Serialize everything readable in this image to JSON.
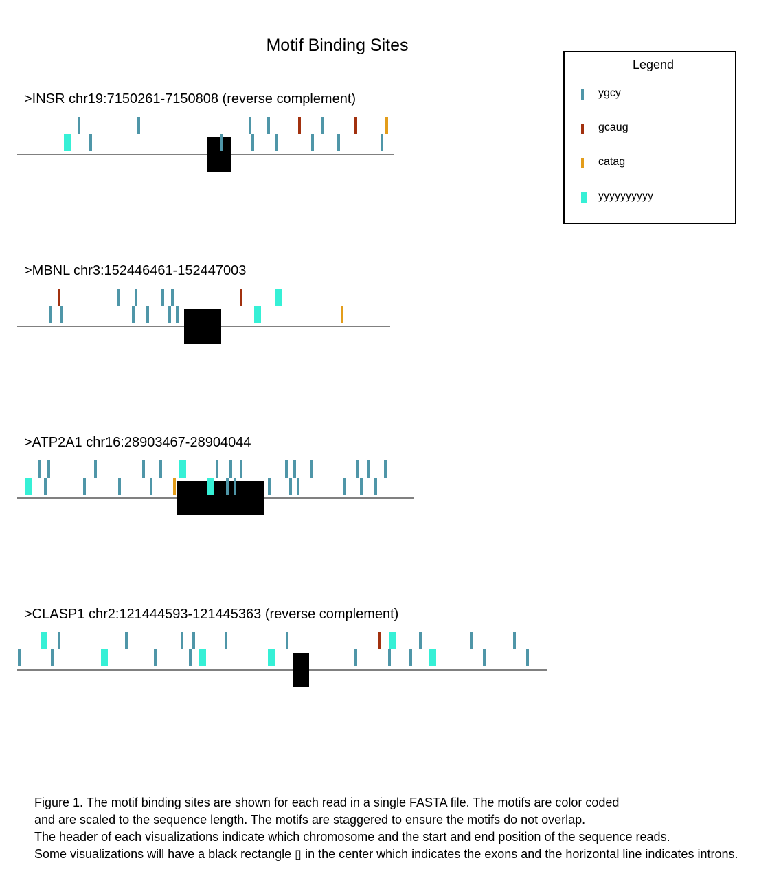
{
  "title": "Motif Binding Sites",
  "legend": {
    "title": "Legend",
    "items": [
      {
        "label": "ygcy",
        "color": "#4f96a8",
        "wide": false
      },
      {
        "label": "gcaug",
        "color": "#a2310f",
        "wide": false
      },
      {
        "label": "catag",
        "color": "#e39d1b",
        "wide": false
      },
      {
        "label": "yyyyyyyyyy",
        "color": "#36f0d6",
        "wide": true
      }
    ]
  },
  "colors": {
    "ygcy": "#4f96a8",
    "gcaug": "#a2310f",
    "catag": "#e39d1b",
    "yyyyyyyyyy": "#36f0d6",
    "exon": "#000000",
    "intron": "#808080"
  },
  "reads": [
    {
      "header": ">INSR chr19:7150261-7150808 (reverse complement)",
      "length": 548,
      "exon": [
        276,
        311
      ],
      "motifs": [
        {
          "m": "ygcy",
          "pos": 90,
          "row": 1
        },
        {
          "m": "ygcy",
          "pos": 177,
          "row": 1
        },
        {
          "m": "ygcy",
          "pos": 339,
          "row": 1
        },
        {
          "m": "ygcy",
          "pos": 366,
          "row": 1
        },
        {
          "m": "gcaug",
          "pos": 411,
          "row": 1
        },
        {
          "m": "ygcy",
          "pos": 444,
          "row": 1
        },
        {
          "m": "gcaug",
          "pos": 493,
          "row": 1
        },
        {
          "m": "catag",
          "pos": 538,
          "row": 1
        },
        {
          "m": "yyyyyyyyyy",
          "pos": 73,
          "row": 0
        },
        {
          "m": "ygcy",
          "pos": 107,
          "row": 0
        },
        {
          "m": "ygcy",
          "pos": 298,
          "row": 0
        },
        {
          "m": "ygcy",
          "pos": 343,
          "row": 0
        },
        {
          "m": "ygcy",
          "pos": 377,
          "row": 0
        },
        {
          "m": "ygcy",
          "pos": 430,
          "row": 0
        },
        {
          "m": "ygcy",
          "pos": 468,
          "row": 0
        },
        {
          "m": "ygcy",
          "pos": 531,
          "row": 0
        }
      ]
    },
    {
      "header": ">MBNL chr3:152446461-152447003",
      "length": 543,
      "exon": [
        243,
        297
      ],
      "motifs": [
        {
          "m": "gcaug",
          "pos": 61,
          "row": 1
        },
        {
          "m": "ygcy",
          "pos": 147,
          "row": 1
        },
        {
          "m": "ygcy",
          "pos": 173,
          "row": 1
        },
        {
          "m": "ygcy",
          "pos": 212,
          "row": 1
        },
        {
          "m": "ygcy",
          "pos": 226,
          "row": 1
        },
        {
          "m": "gcaug",
          "pos": 326,
          "row": 1
        },
        {
          "m": "yyyyyyyyyy",
          "pos": 381,
          "row": 1
        },
        {
          "m": "ygcy",
          "pos": 49,
          "row": 0
        },
        {
          "m": "ygcy",
          "pos": 64,
          "row": 0
        },
        {
          "m": "ygcy",
          "pos": 169,
          "row": 0
        },
        {
          "m": "ygcy",
          "pos": 190,
          "row": 0
        },
        {
          "m": "ygcy",
          "pos": 222,
          "row": 0
        },
        {
          "m": "ygcy",
          "pos": 233,
          "row": 0
        },
        {
          "m": "yyyyyyyyyy",
          "pos": 350,
          "row": 0
        },
        {
          "m": "catag",
          "pos": 473,
          "row": 0
        }
      ]
    },
    {
      "header": ">ATP2A1 chr16:28903467-28904044",
      "length": 578,
      "exon": [
        233,
        360
      ],
      "motifs": [
        {
          "m": "ygcy",
          "pos": 32,
          "row": 1
        },
        {
          "m": "ygcy",
          "pos": 46,
          "row": 1
        },
        {
          "m": "ygcy",
          "pos": 114,
          "row": 1
        },
        {
          "m": "ygcy",
          "pos": 184,
          "row": 1
        },
        {
          "m": "ygcy",
          "pos": 209,
          "row": 1
        },
        {
          "m": "yyyyyyyyyy",
          "pos": 241,
          "row": 1
        },
        {
          "m": "ygcy",
          "pos": 291,
          "row": 1
        },
        {
          "m": "ygcy",
          "pos": 311,
          "row": 1
        },
        {
          "m": "ygcy",
          "pos": 326,
          "row": 1
        },
        {
          "m": "ygcy",
          "pos": 392,
          "row": 1
        },
        {
          "m": "ygcy",
          "pos": 404,
          "row": 1
        },
        {
          "m": "ygcy",
          "pos": 429,
          "row": 1
        },
        {
          "m": "ygcy",
          "pos": 496,
          "row": 1
        },
        {
          "m": "ygcy",
          "pos": 511,
          "row": 1
        },
        {
          "m": "ygcy",
          "pos": 536,
          "row": 1
        },
        {
          "m": "yyyyyyyyyy",
          "pos": 17,
          "row": 0
        },
        {
          "m": "ygcy",
          "pos": 41,
          "row": 0
        },
        {
          "m": "ygcy",
          "pos": 98,
          "row": 0
        },
        {
          "m": "ygcy",
          "pos": 149,
          "row": 0
        },
        {
          "m": "ygcy",
          "pos": 195,
          "row": 0
        },
        {
          "m": "catag",
          "pos": 229,
          "row": 0
        },
        {
          "m": "yyyyyyyyyy",
          "pos": 281,
          "row": 0
        },
        {
          "m": "ygcy",
          "pos": 306,
          "row": 0
        },
        {
          "m": "ygcy",
          "pos": 317,
          "row": 0
        },
        {
          "m": "ygcy",
          "pos": 367,
          "row": 0
        },
        {
          "m": "ygcy",
          "pos": 398,
          "row": 0
        },
        {
          "m": "ygcy",
          "pos": 409,
          "row": 0
        },
        {
          "m": "ygcy",
          "pos": 476,
          "row": 0
        },
        {
          "m": "ygcy",
          "pos": 501,
          "row": 0
        },
        {
          "m": "ygcy",
          "pos": 522,
          "row": 0
        }
      ]
    },
    {
      "header": ">CLASP1 chr2:121444593-121445363 (reverse complement)",
      "length": 771,
      "exon": [
        401,
        425
      ],
      "motifs": [
        {
          "m": "yyyyyyyyyy",
          "pos": 39,
          "row": 1
        },
        {
          "m": "ygcy",
          "pos": 61,
          "row": 1
        },
        {
          "m": "ygcy",
          "pos": 159,
          "row": 1
        },
        {
          "m": "ygcy",
          "pos": 240,
          "row": 1
        },
        {
          "m": "ygcy",
          "pos": 257,
          "row": 1
        },
        {
          "m": "ygcy",
          "pos": 304,
          "row": 1
        },
        {
          "m": "ygcy",
          "pos": 393,
          "row": 1
        },
        {
          "m": "gcaug",
          "pos": 527,
          "row": 1
        },
        {
          "m": "yyyyyyyyyy",
          "pos": 546,
          "row": 1
        },
        {
          "m": "ygcy",
          "pos": 587,
          "row": 1
        },
        {
          "m": "ygcy",
          "pos": 661,
          "row": 1
        },
        {
          "m": "ygcy",
          "pos": 724,
          "row": 1
        },
        {
          "m": "ygcy",
          "pos": 3,
          "row": 0
        },
        {
          "m": "ygcy",
          "pos": 51,
          "row": 0
        },
        {
          "m": "yyyyyyyyyy",
          "pos": 127,
          "row": 0
        },
        {
          "m": "ygcy",
          "pos": 201,
          "row": 0
        },
        {
          "m": "ygcy",
          "pos": 252,
          "row": 0
        },
        {
          "m": "yyyyyyyyyy",
          "pos": 270,
          "row": 0
        },
        {
          "m": "yyyyyyyyyy",
          "pos": 370,
          "row": 0
        },
        {
          "m": "ygcy",
          "pos": 493,
          "row": 0
        },
        {
          "m": "ygcy",
          "pos": 542,
          "row": 0
        },
        {
          "m": "ygcy",
          "pos": 573,
          "row": 0
        },
        {
          "m": "yyyyyyyyyy",
          "pos": 605,
          "row": 0
        },
        {
          "m": "ygcy",
          "pos": 680,
          "row": 0
        },
        {
          "m": "ygcy",
          "pos": 743,
          "row": 0
        }
      ]
    }
  ],
  "caption": [
    "Figure 1. The motif binding sites are shown for each read in a single FASTA file. The motifs are color coded",
    "and are scaled to the sequence length. The motifs are staggered to ensure the motifs do not overlap.",
    "The header of each visualizations indicate which chromosome and the start and end position of the sequence reads.",
    "Some visualizations will have a black rectangle ▯ in the center which indicates the exons and the horizontal line indicates introns."
  ]
}
